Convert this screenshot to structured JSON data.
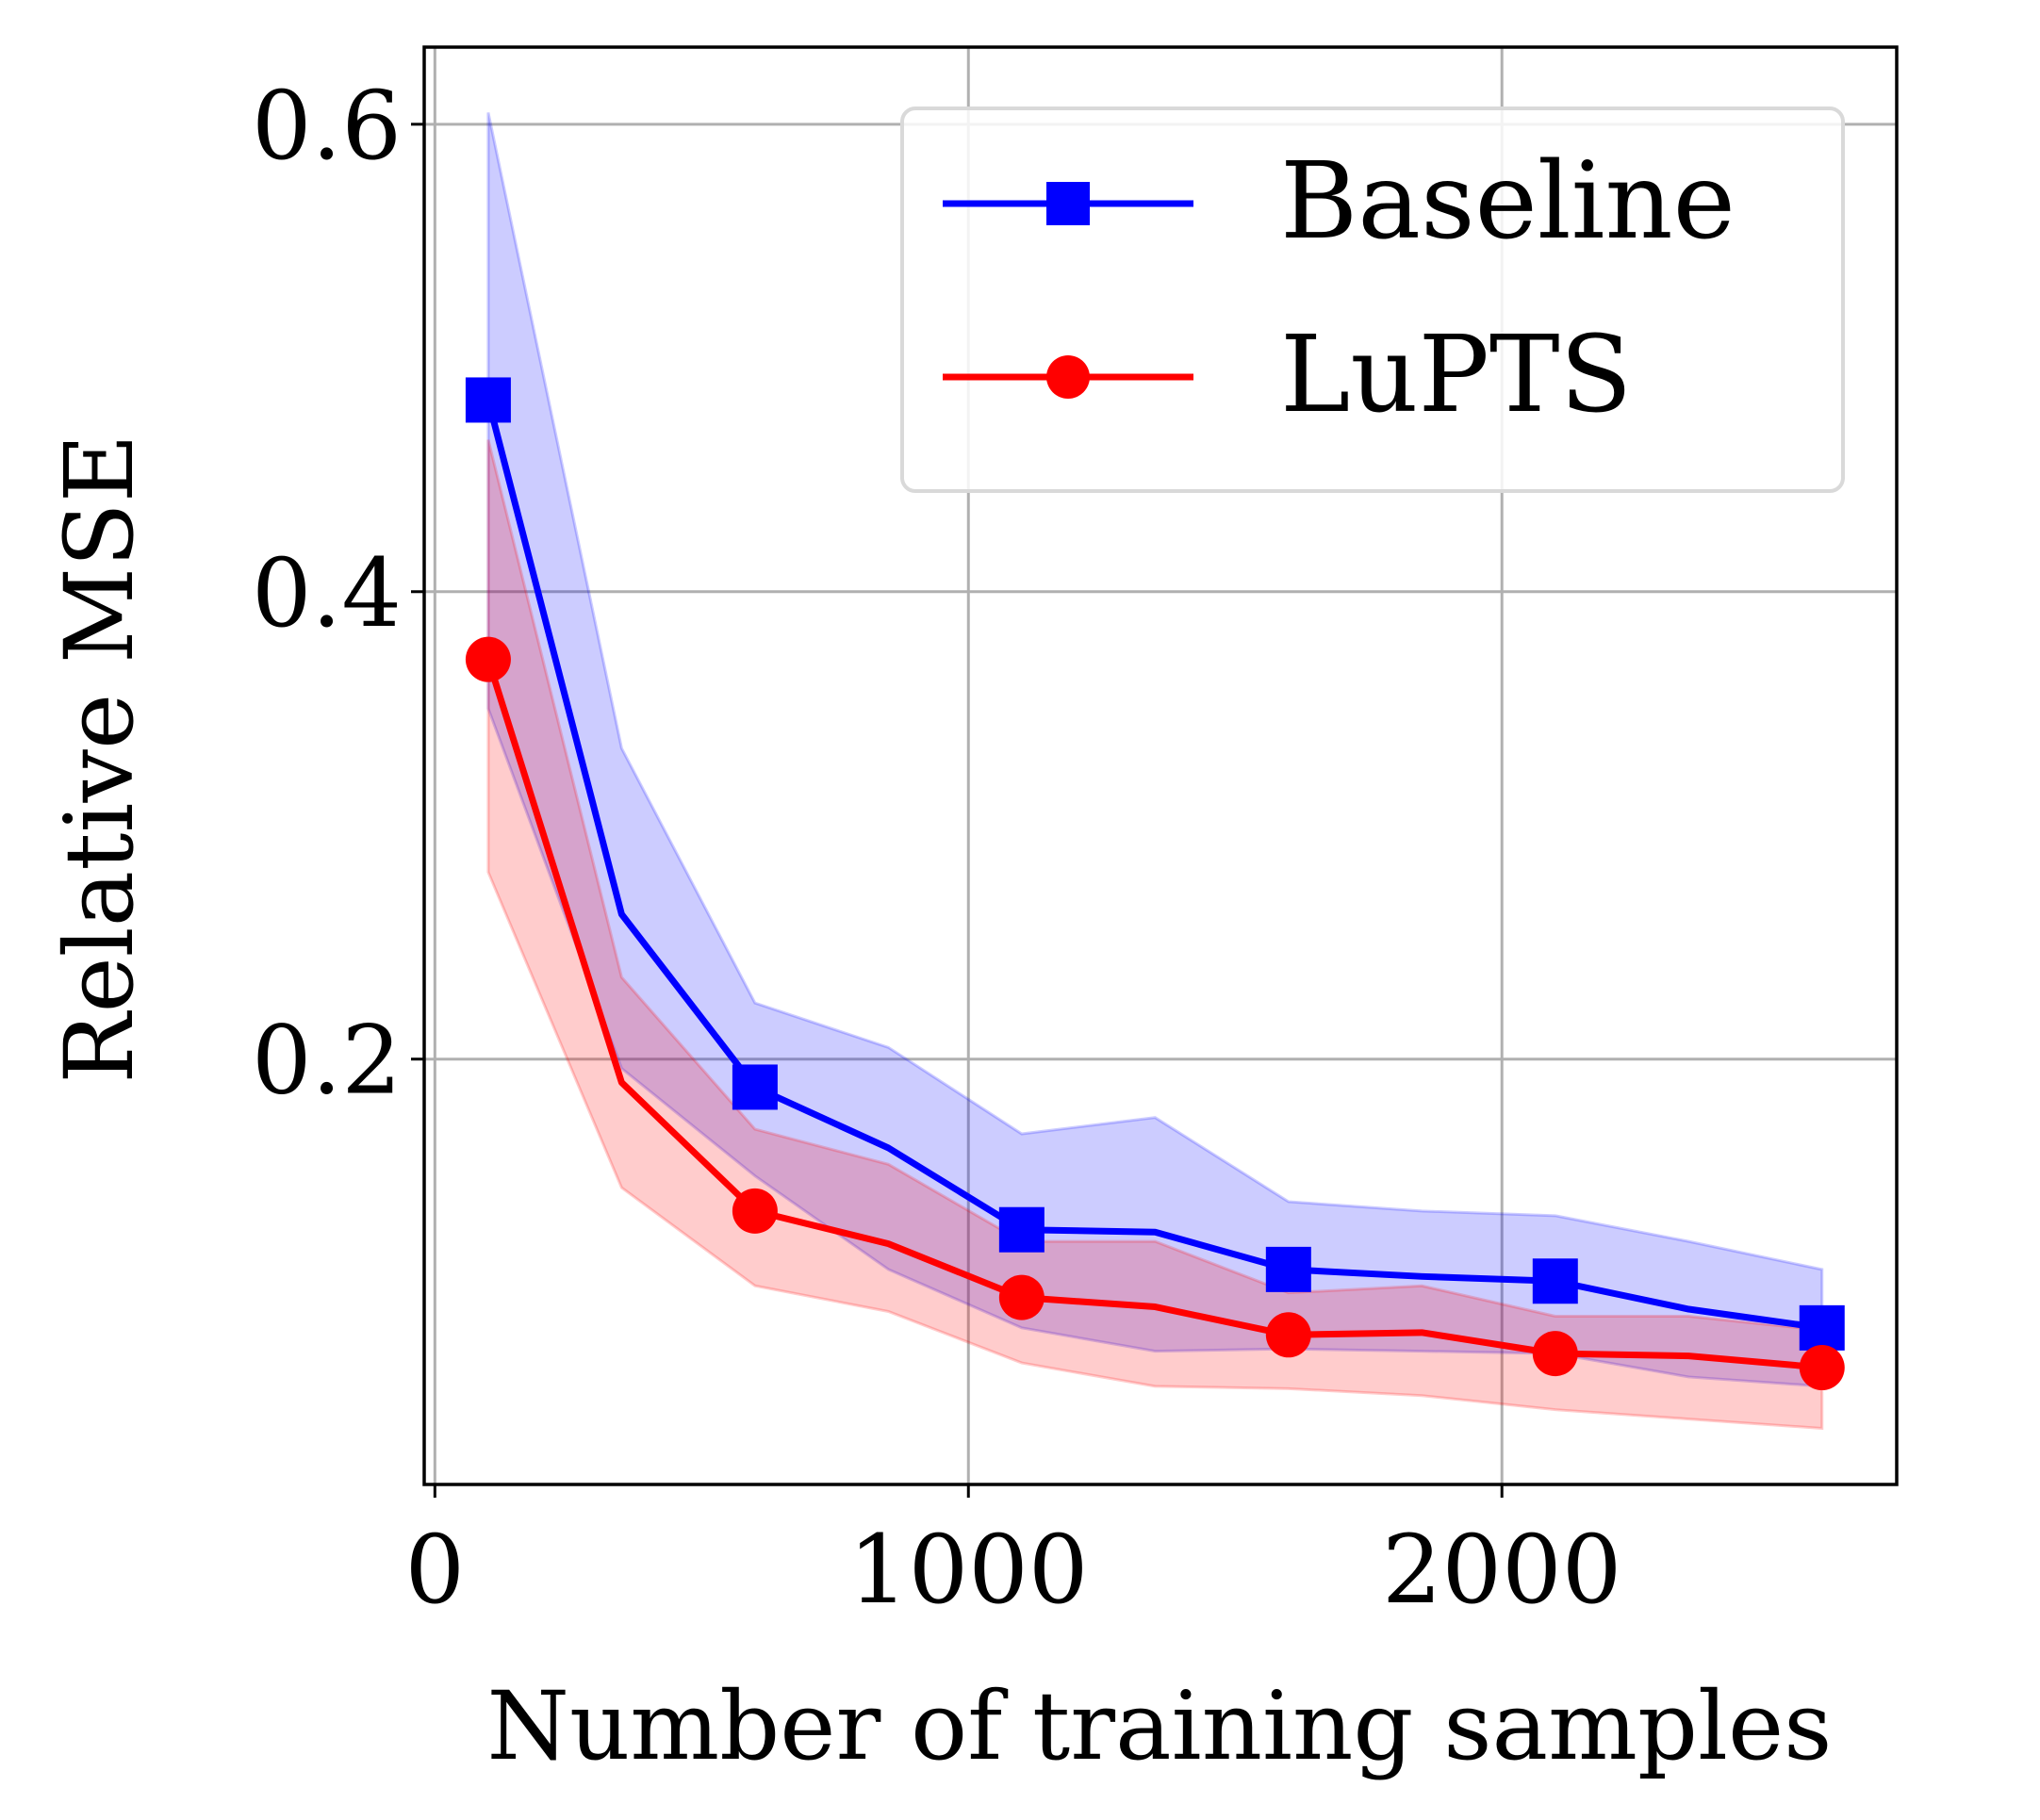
{
  "chart_data": {
    "type": "line",
    "title": "",
    "xlabel": "Number of training samples",
    "ylabel": "Relative MSE",
    "xlim": [
      -20,
      2740
    ],
    "ylim": [
      0.018,
      0.633
    ],
    "xticks": [
      0,
      1000,
      2000
    ],
    "xtick_labels": [
      "0",
      "1000",
      "2000"
    ],
    "yticks": [
      0.2,
      0.4,
      0.6
    ],
    "ytick_labels": [
      "0.2",
      "0.4",
      "0.6"
    ],
    "grid": true,
    "legend_position": "top-right",
    "x": [
      100,
      350,
      600,
      850,
      1100,
      1350,
      1600,
      1850,
      2100,
      2350,
      2600
    ],
    "series": [
      {
        "name": "Baseline",
        "color": "#0000ff",
        "marker": "square",
        "marker_x": [
          100,
          600,
          1100,
          1600,
          2100,
          2600
        ],
        "values": [
          0.482,
          0.262,
          0.188,
          0.162,
          0.127,
          0.126,
          0.11,
          0.107,
          0.105,
          0.093,
          0.085
        ],
        "upper": [
          0.605,
          0.333,
          0.224,
          0.205,
          0.168,
          0.175,
          0.139,
          0.135,
          0.133,
          0.122,
          0.11
        ],
        "lower": [
          0.35,
          0.196,
          0.15,
          0.11,
          0.085,
          0.075,
          0.076,
          0.075,
          0.074,
          0.064,
          0.06
        ]
      },
      {
        "name": "LuPTS",
        "color": "#ff0000",
        "marker": "circle",
        "marker_x": [
          100,
          600,
          1100,
          1600,
          2100,
          2600
        ],
        "values": [
          0.371,
          0.19,
          0.135,
          0.121,
          0.098,
          0.094,
          0.082,
          0.083,
          0.074,
          0.073,
          0.068
        ],
        "upper": [
          0.465,
          0.235,
          0.17,
          0.155,
          0.122,
          0.122,
          0.1,
          0.103,
          0.09,
          0.09,
          0.084
        ],
        "lower": [
          0.28,
          0.145,
          0.103,
          0.092,
          0.07,
          0.06,
          0.059,
          0.056,
          0.05,
          0.046,
          0.042
        ]
      }
    ]
  }
}
